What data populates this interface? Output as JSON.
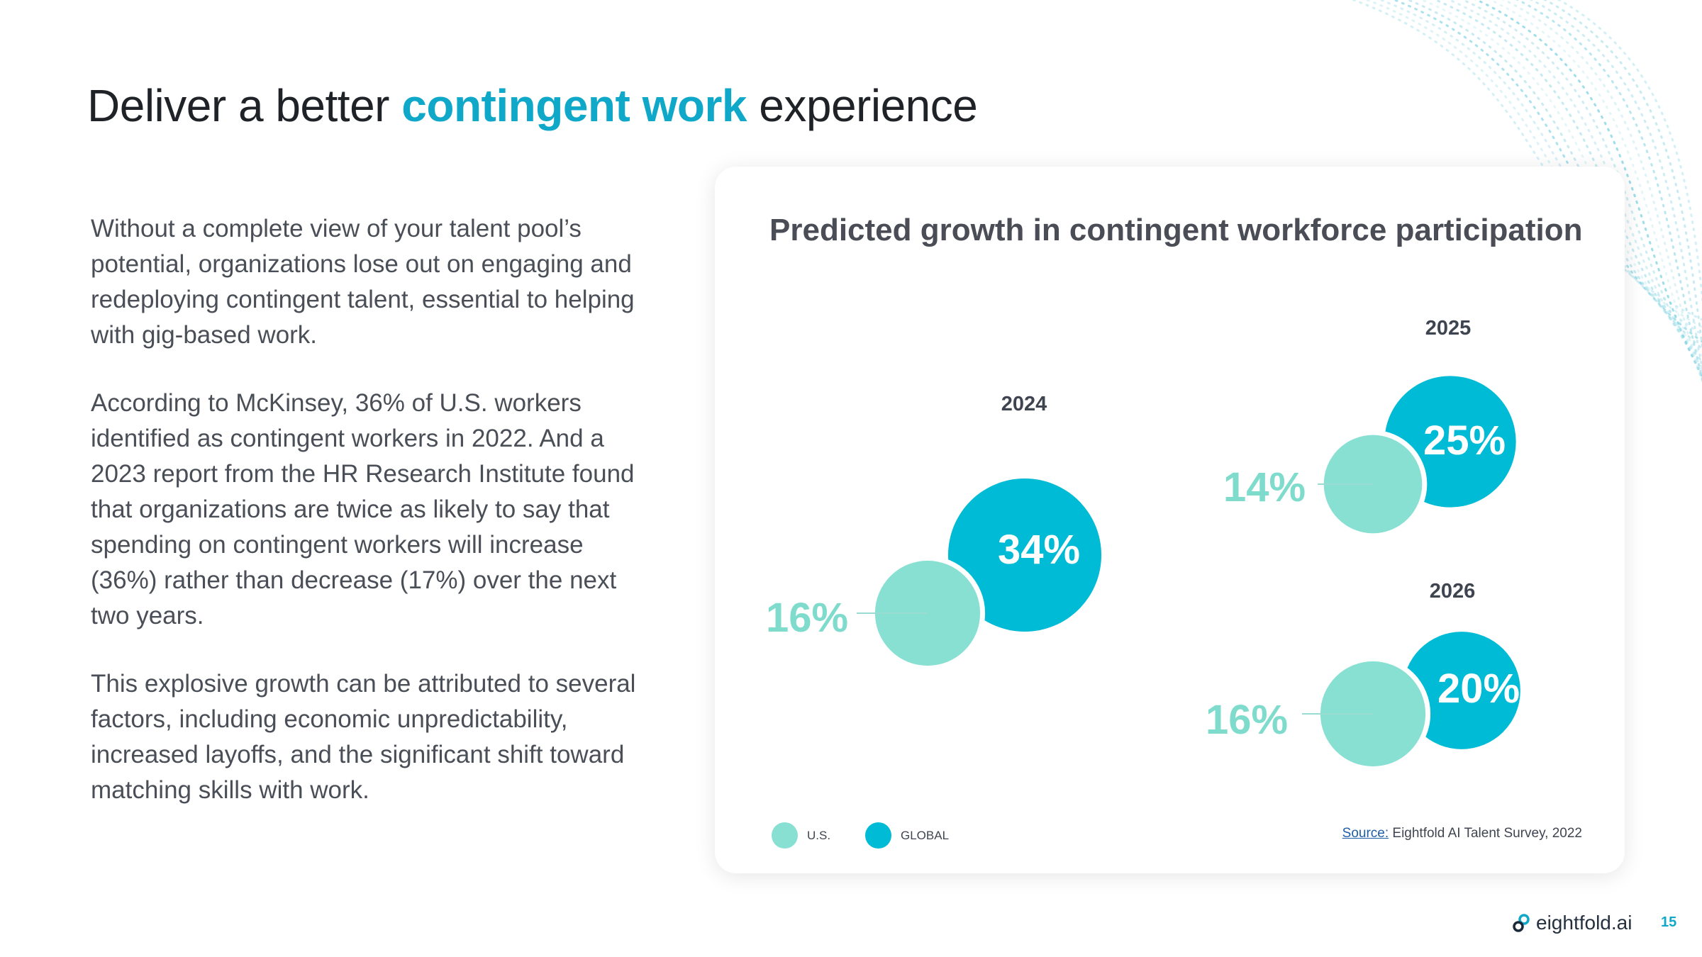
{
  "slide": {
    "title_pre": "Deliver a better ",
    "title_accent": "contingent work",
    "title_post": " experience",
    "page_number": "15",
    "brand": "eightfold.ai"
  },
  "body": {
    "paragraphs": [
      "Without a complete view of your talent pool’s potential, organizations lose out on engaging and redeploying contingent talent, essential to helping with gig-based work.",
      "According to McKinsey, 36% of U.S. workers identified as contingent workers in 2022. And a 2023 report from the HR Research Institute found that organizations are twice as likely to say that spending on contingent workers will increase (36%)  rather than decrease (17%) over the next two years.",
      "This explosive growth can be attributed to several factors, including economic unpredictability, increased layoffs, and the significant shift toward matching skills with work."
    ]
  },
  "colors": {
    "accent": "#10a8c9",
    "global": "#00bbd5",
    "us": "#88e0d3",
    "us_label": "#7fdccc"
  },
  "chart_data": {
    "type": "bubble",
    "title": "Predicted growth in contingent workforce participation",
    "categories": [
      "2024",
      "2025",
      "2026"
    ],
    "series": [
      {
        "name": "U.S.",
        "values": [
          16,
          14,
          16
        ]
      },
      {
        "name": "GLOBAL",
        "values": [
          34,
          25,
          20
        ]
      }
    ],
    "value_labels": {
      "us": [
        "16%",
        "14%",
        "16%"
      ],
      "global": [
        "34%",
        "25%",
        "20%"
      ]
    },
    "legend": [
      "U.S.",
      "GLOBAL"
    ],
    "legend_position": "bottom-left",
    "source_prefix": "Source:",
    "source_text": " Eightfold AI Talent Survey, 2022"
  }
}
